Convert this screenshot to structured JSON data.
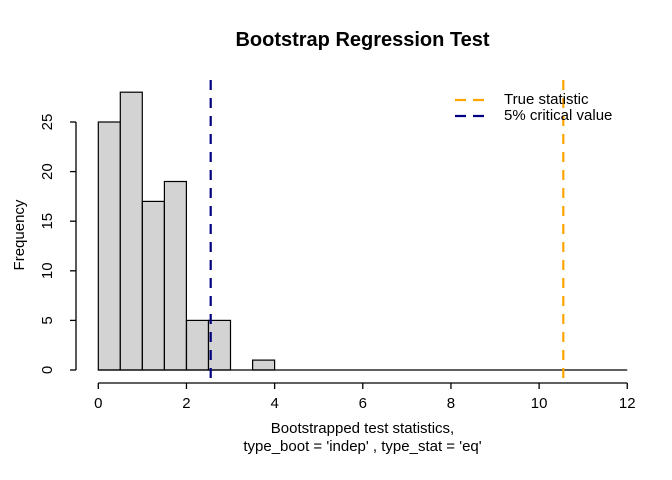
{
  "chart_data": {
    "type": "bar",
    "histogram": true,
    "title": "Bootstrap Regression Test",
    "xlabel": [
      "Bootstrapped test statistics,",
      "type_boot = 'indep' , type_stat = 'eq'"
    ],
    "ylabel": "Frequency",
    "bin_edges": [
      0,
      0.5,
      1,
      1.5,
      2,
      2.5,
      3,
      3.5,
      4
    ],
    "counts": [
      25,
      28,
      17,
      19,
      5,
      5,
      0,
      1
    ],
    "xlim": [
      0,
      12
    ],
    "ylim": [
      0,
      28
    ],
    "x_ticks": [
      0,
      2,
      4,
      6,
      8,
      10,
      12
    ],
    "y_ticks": [
      0,
      5,
      10,
      15,
      20,
      25
    ],
    "bar_fill": "#d3d3d3",
    "bar_stroke": "#000000",
    "axis_color": "#000000",
    "grid": false,
    "vlines": [
      {
        "id": "true-statistic-line",
        "x": 10.55,
        "color": "#ffa500",
        "style": "dashed",
        "label": "True statistic"
      },
      {
        "id": "critical-value-line",
        "x": 2.55,
        "color": "#000080",
        "style": "dashed",
        "label": "5% critical value"
      }
    ],
    "legend": {
      "position": "top-right",
      "box": false,
      "items": [
        {
          "label": "True statistic",
          "color": "#ffa500"
        },
        {
          "label": "5% critical value",
          "color": "#000080"
        }
      ]
    }
  }
}
